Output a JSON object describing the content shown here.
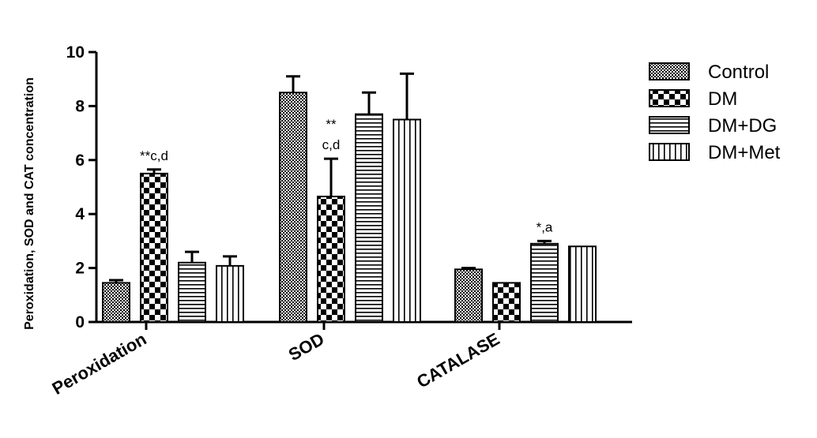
{
  "chart_data": {
    "type": "bar",
    "ylabel": "Peroxidation, SOD and CAT concentration",
    "xlabel": "",
    "title": "",
    "ylim": [
      0,
      10
    ],
    "yticks": [
      "0",
      "2",
      "4",
      "6",
      "8",
      "10"
    ],
    "categories": [
      "Peroxidation",
      "SOD",
      "CATALASE"
    ],
    "series": [
      {
        "name": "Control",
        "pattern": "fine-checker",
        "values": [
          1.45,
          8.5,
          1.95
        ],
        "errors": [
          0.1,
          0.6,
          0.05
        ]
      },
      {
        "name": "DM",
        "pattern": "large-checker",
        "values": [
          5.5,
          4.65,
          1.45
        ],
        "errors": [
          0.15,
          1.4,
          0.0
        ]
      },
      {
        "name": "DM+DG",
        "pattern": "horizontal-lines",
        "values": [
          2.2,
          7.7,
          2.9
        ],
        "errors": [
          0.4,
          0.8,
          0.1
        ]
      },
      {
        "name": "DM+Met",
        "pattern": "vertical-lines",
        "values": [
          2.08,
          7.5,
          2.8
        ],
        "errors": [
          0.35,
          1.7,
          0.0
        ]
      }
    ],
    "annotations": [
      {
        "category": 0,
        "series": 1,
        "lines": [
          "**c,d"
        ]
      },
      {
        "category": 1,
        "series": 1,
        "lines": [
          "**",
          "c,d"
        ]
      },
      {
        "category": 2,
        "series": 2,
        "lines": [
          "*,a"
        ]
      }
    ],
    "grid": false,
    "legend": "right"
  },
  "colors": {
    "ink": "#000000",
    "fill": "#ffffff"
  }
}
